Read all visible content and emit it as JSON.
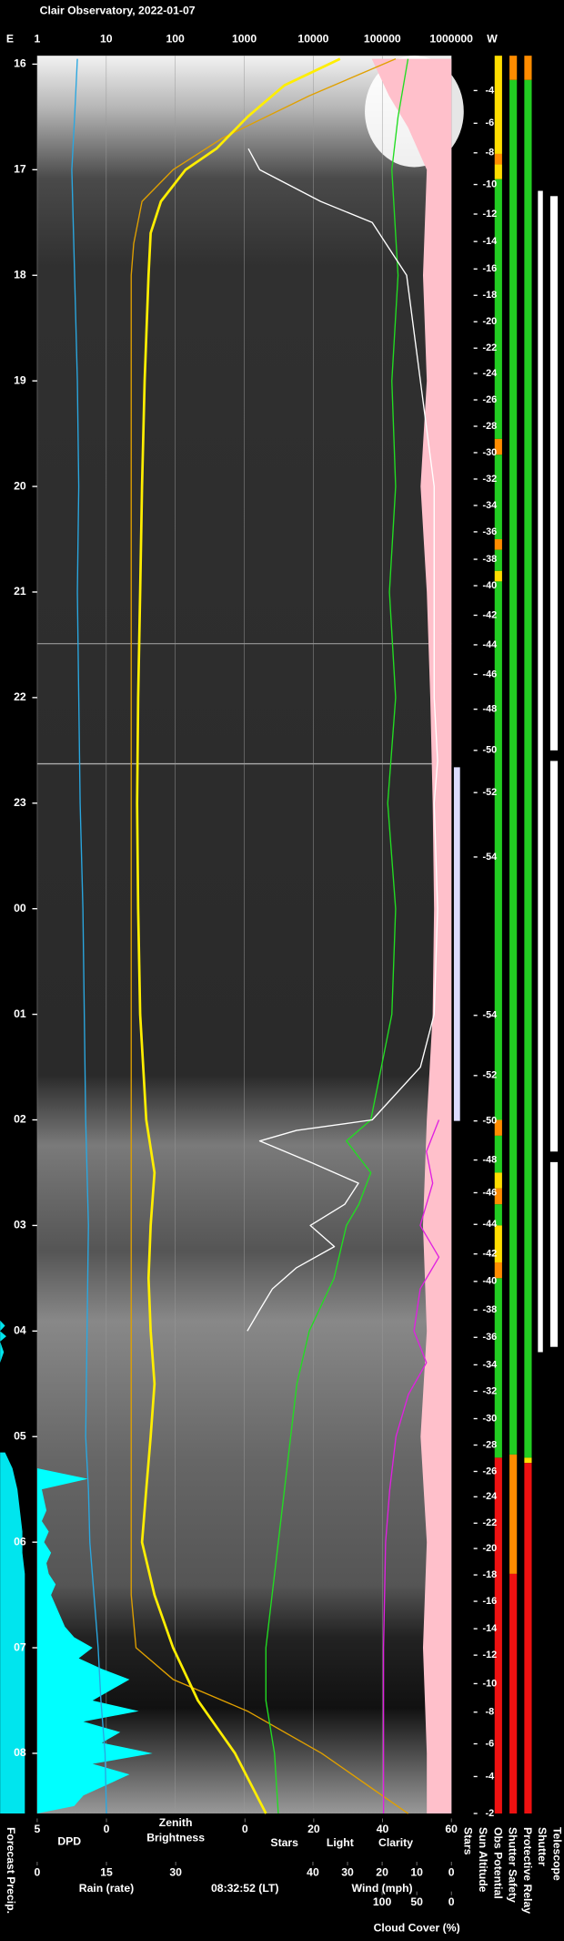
{
  "title": "Clair Observatory, 2022-01-07",
  "chart_data": {
    "type": "keogram",
    "left_label": "E",
    "right_label": "W",
    "xlim": [
      1,
      1000000
    ],
    "xticks": [
      1,
      10,
      100,
      1000,
      10000,
      100000,
      1000000
    ],
    "xlog": true,
    "grid": true,
    "ylim": [
      15.92,
      32.57
    ],
    "yticks": [
      16,
      17,
      18,
      19,
      20,
      21,
      22,
      23,
      {
        "value": 24,
        "label": "00"
      },
      {
        "value": 25,
        "label": "01"
      },
      {
        "value": 26,
        "label": "02"
      },
      {
        "value": 27,
        "label": "03"
      },
      {
        "value": 28,
        "label": "04"
      },
      {
        "value": 29,
        "label": "05"
      },
      {
        "value": 30,
        "label": "06"
      },
      {
        "value": 31,
        "label": "07"
      },
      {
        "value": 32,
        "label": "08"
      }
    ],
    "axes": {
      "dpd": {
        "label": "DPD",
        "color": "#2aa7e0",
        "lim": [
          5,
          0
        ],
        "ticks": [
          5,
          0
        ]
      },
      "zenith": {
        "label": [
          "Zenith",
          "Brightness"
        ],
        "color": "#ffee00"
      },
      "stars": {
        "labels": [
          {
            "text": "Stars",
            "color": "#ffffff"
          },
          {
            "text": "Light",
            "color": "#ffee00"
          },
          {
            "text": "Clarity",
            "color": "#22dd22"
          }
        ],
        "lim": [
          0,
          60
        ],
        "ticks": [
          0,
          20,
          40,
          60
        ]
      },
      "rain": {
        "label": "Rain (rate)",
        "color": "#00e5ee",
        "lim": [
          0,
          30
        ],
        "ticks": [
          0,
          15,
          30
        ]
      },
      "wind": {
        "label": "Wind (mph)",
        "color": "#ffb6c1",
        "lim": [
          40,
          0
        ],
        "ticks": [
          40,
          30,
          20,
          10,
          0
        ]
      },
      "cloud": {
        "label": "Cloud Cover (%)",
        "color": "#e020e0",
        "lim": [
          100,
          0
        ],
        "ticks": [
          100,
          50,
          0
        ]
      }
    },
    "timestamp": "08:32:52 (LT)",
    "series": [
      {
        "axis": "wind",
        "style": "area",
        "color": "#ffc0cb",
        "t": [
          15.95,
          16.3,
          16.6,
          17,
          18,
          19,
          20,
          21,
          22,
          23,
          24,
          25,
          26,
          27,
          28,
          29,
          30,
          31,
          32,
          32.57
        ],
        "values": [
          23,
          18,
          12.5,
          7.1,
          8.2,
          7.1,
          8.9,
          7.1,
          6.1,
          5.4,
          5,
          5.4,
          7.1,
          8.2,
          7.1,
          8.9,
          7.1,
          8.2,
          7.1,
          7.1
        ]
      },
      {
        "axis": "rain",
        "style": "area",
        "color": "#00ffff",
        "t": [
          29.3,
          29.4,
          29.5,
          29.6,
          29.7,
          29.8,
          29.9,
          30.0,
          30.1,
          30.2,
          30.3,
          30.4,
          30.5,
          30.6,
          30.7,
          30.8,
          30.9,
          31.0,
          31.1,
          31.2,
          31.3,
          31.4,
          31.5,
          31.6,
          31.7,
          31.8,
          31.9,
          32.0,
          32.1,
          32.2,
          32.3,
          32.4,
          32.5,
          32.57
        ],
        "values": [
          0,
          11,
          1,
          1.5,
          2,
          1,
          2.5,
          1.5,
          3,
          2,
          2.5,
          4,
          3,
          4,
          5,
          6,
          8,
          12,
          9,
          14,
          20,
          16,
          12,
          22,
          10,
          18,
          14,
          25,
          12,
          20,
          15,
          10,
          8,
          0
        ]
      },
      {
        "axis": "dpd",
        "style": "line",
        "color": "#2aa7e0",
        "t": [
          15.95,
          16.5,
          17,
          18,
          19,
          20,
          21,
          22,
          23,
          24,
          25,
          26,
          27,
          28,
          29,
          29.5,
          30,
          30.5,
          31,
          31.5,
          32,
          32.57
        ],
        "values": [
          2.1,
          2.3,
          2.5,
          2.3,
          2.1,
          2.0,
          2.1,
          2.0,
          1.9,
          1.7,
          1.6,
          1.5,
          1.3,
          1.4,
          1.5,
          1.3,
          1.2,
          0.9,
          0.6,
          0.4,
          0.1,
          0
        ]
      },
      {
        "axis": "x",
        "style": "line",
        "color": "#e0a000",
        "t": [
          15.95,
          16.3,
          16.7,
          17.0,
          17.3,
          17.7,
          18,
          20,
          22,
          24,
          26,
          28,
          30,
          30.5,
          31,
          31.3,
          31.6,
          32,
          32.57
        ],
        "values": [
          156000,
          8700,
          485,
          93,
          33,
          25,
          23,
          23,
          23,
          23,
          23,
          23,
          23,
          23,
          27,
          93,
          1110,
          13200,
          236000
        ]
      },
      {
        "axis": "x",
        "style": "thick",
        "color": "#ffee00",
        "t": [
          15.95,
          16.2,
          16.5,
          16.8,
          17.0,
          17.3,
          17.6,
          18,
          19,
          20,
          21,
          22,
          23,
          24,
          25,
          26,
          26.5,
          27,
          27.5,
          28,
          28.5,
          29,
          29.5,
          30,
          30.5,
          31,
          31.5,
          32,
          32.57
        ],
        "values": [
          24400,
          3820,
          1110,
          395,
          141,
          62,
          44,
          41,
          36,
          33,
          31,
          29,
          28,
          29,
          31,
          38,
          50,
          44,
          41,
          44,
          50,
          44,
          38,
          33,
          50,
          93,
          213,
          735,
          2060
        ]
      },
      {
        "axis": "cloud",
        "style": "line",
        "color": "#e020e0",
        "t": [
          26.0,
          26.3,
          26.6,
          27,
          27.3,
          27.6,
          28,
          28.3,
          28.6,
          29,
          29.5,
          30,
          31,
          32,
          32.57
        ],
        "values": [
          18,
          36,
          27,
          45,
          18,
          45,
          54,
          36,
          62,
          80,
          89,
          95,
          98,
          98,
          98
        ]
      },
      {
        "axis": "stars",
        "style": "line",
        "color": "#22dd22",
        "t": [
          15.95,
          16.5,
          17,
          18,
          19,
          20,
          21,
          22,
          23,
          24,
          25,
          26.0,
          26.2,
          26.5,
          26.8,
          27,
          27.5,
          28,
          28.5,
          29,
          29.5,
          30,
          30.5,
          31,
          31.5,
          32,
          32.57
        ],
        "values": [
          47.4,
          44.5,
          42.7,
          44.5,
          42.7,
          43.8,
          42,
          43.8,
          41.5,
          43.8,
          42.7,
          36.6,
          29.5,
          36.6,
          33.1,
          29.5,
          25.9,
          18.7,
          15.1,
          13.3,
          11.5,
          9.7,
          7.9,
          6.1,
          6.1,
          8.6,
          9.7
        ]
      },
      {
        "axis": "stars",
        "style": "line",
        "color": "#ffffff",
        "t": [
          16.8,
          17.0,
          17.3,
          17.5,
          18,
          19,
          20,
          21,
          22,
          22.6,
          23,
          24,
          25,
          25.5,
          26.0,
          26.1,
          26.2,
          26.4,
          26.6,
          26.8,
          27.0,
          27.2,
          27.4,
          27.6,
          27.8,
          28.0
        ],
        "values": [
          1,
          4.3,
          22,
          37,
          47,
          51,
          55,
          55,
          55,
          56,
          55,
          56,
          55,
          51,
          37,
          15,
          4.3,
          19,
          33,
          29,
          19,
          26,
          15,
          8,
          4.3,
          0.7
        ]
      }
    ],
    "forecast": {
      "label": "Forecast Precip.",
      "color": "#00e5ee",
      "t": [
        27.9,
        27.95,
        28.0,
        28.05,
        28.1,
        28.2,
        28.3,
        28.35,
        29.15,
        29.3,
        29.5,
        29.7,
        29.9,
        30.1,
        30.3,
        30.5,
        30.7,
        30.9,
        31.1,
        31.3,
        31.5,
        31.7,
        31.9,
        32.1,
        32.3,
        32.57
      ],
      "values": [
        0,
        4,
        0,
        5,
        0,
        3,
        0,
        null,
        4,
        10,
        14,
        16,
        18,
        18,
        20,
        20,
        20,
        20,
        20,
        20,
        20,
        20,
        20,
        20,
        20,
        20
      ]
    },
    "sun_altitude": {
      "label": "Sun Altitude",
      "t": [
        16.25,
        16.56,
        16.84,
        17.14,
        17.42,
        17.68,
        17.94,
        18.19,
        18.44,
        18.69,
        18.93,
        19.18,
        19.43,
        19.68,
        19.93,
        20.18,
        20.43,
        20.69,
        20.94,
        21.22,
        21.5,
        21.78,
        22.11,
        22.5,
        22.9,
        23.51,
        25.01,
        25.58,
        26.01,
        26.38,
        26.69,
        26.99,
        27.27,
        27.53,
        27.8,
        28.06,
        28.32,
        28.57,
        28.83,
        29.08,
        29.33,
        29.57,
        29.82,
        30.06,
        30.31,
        30.56,
        30.82,
        31.07,
        31.34,
        31.61,
        31.91,
        32.22,
        32.57
      ],
      "values": [
        -4,
        -6,
        -8,
        -10,
        -12,
        -14,
        -16,
        -18,
        -20,
        -22,
        -24,
        -26,
        -28,
        -30,
        -32,
        -34,
        -36,
        -38,
        -40,
        -42,
        -44,
        -46,
        -48,
        -50,
        -52,
        -54,
        -54,
        -52,
        -50,
        -48,
        -46,
        -44,
        -42,
        -40,
        -38,
        -36,
        -34,
        -32,
        -30,
        -28,
        -26,
        -24,
        -22,
        -20,
        -18,
        -16,
        -14,
        -12,
        -10,
        -8,
        -6,
        -4,
        -2
      ]
    },
    "status": [
      {
        "label": "Stars",
        "segments": [
          {
            "start": 22.66,
            "end": 26.01,
            "color": "#dcdcff"
          }
        ]
      },
      {
        "label": "Obs Potential",
        "segments": [
          {
            "start": 15.92,
            "end": 16.85,
            "color": "#ffdd00"
          },
          {
            "start": 16.85,
            "end": 16.95,
            "color": "#ff8c00"
          },
          {
            "start": 16.95,
            "end": 17.09,
            "color": "#ffdd00"
          },
          {
            "start": 17.09,
            "end": 19.55,
            "color": "#22cc22"
          },
          {
            "start": 19.55,
            "end": 19.7,
            "color": "#ff8c00"
          },
          {
            "start": 19.7,
            "end": 20.5,
            "color": "#22cc22"
          },
          {
            "start": 20.5,
            "end": 20.6,
            "color": "#ff8c00"
          },
          {
            "start": 20.6,
            "end": 20.8,
            "color": "#22cc22"
          },
          {
            "start": 20.8,
            "end": 20.9,
            "color": "#ffdd00"
          },
          {
            "start": 20.9,
            "end": 26.0,
            "color": "#22cc22"
          },
          {
            "start": 26.0,
            "end": 26.15,
            "color": "#ff8c00"
          },
          {
            "start": 26.15,
            "end": 26.5,
            "color": "#22cc22"
          },
          {
            "start": 26.5,
            "end": 26.65,
            "color": "#ffdd00"
          },
          {
            "start": 26.65,
            "end": 26.8,
            "color": "#ff8c00"
          },
          {
            "start": 26.8,
            "end": 27.0,
            "color": "#22cc22"
          },
          {
            "start": 27.0,
            "end": 27.35,
            "color": "#ffdd00"
          },
          {
            "start": 27.35,
            "end": 27.5,
            "color": "#ff8c00"
          },
          {
            "start": 27.5,
            "end": 29.2,
            "color": "#22cc22"
          },
          {
            "start": 29.2,
            "end": 32.57,
            "color": "#ee1111"
          }
        ]
      },
      {
        "label": "Shutter Safety",
        "segments": [
          {
            "start": 15.92,
            "end": 16.15,
            "color": "#ff8c00"
          },
          {
            "start": 16.15,
            "end": 29.17,
            "color": "#22cc22"
          },
          {
            "start": 29.17,
            "end": 30.3,
            "color": "#ff8c00"
          },
          {
            "start": 30.3,
            "end": 32.57,
            "color": "#ee1111"
          }
        ]
      },
      {
        "label": "Protective Relay",
        "segments": [
          {
            "start": 15.92,
            "end": 16.15,
            "color": "#ff8c00"
          },
          {
            "start": 16.15,
            "end": 29.2,
            "color": "#22cc22"
          },
          {
            "start": 29.2,
            "end": 29.25,
            "color": "#ffdd00"
          },
          {
            "start": 29.25,
            "end": 32.57,
            "color": "#ee1111"
          }
        ]
      },
      {
        "label": "Shutter",
        "segments": [
          {
            "start": 17.2,
            "end": 28.2,
            "color": "#ffffff"
          }
        ]
      },
      {
        "label": "Telescope",
        "segments": [
          {
            "start": 17.25,
            "end": 22.5,
            "color": "#ffffff"
          },
          {
            "start": 22.6,
            "end": 26.3,
            "color": "#ffffff"
          },
          {
            "start": 26.4,
            "end": 28.15,
            "color": "#ffffff"
          }
        ]
      }
    ]
  }
}
